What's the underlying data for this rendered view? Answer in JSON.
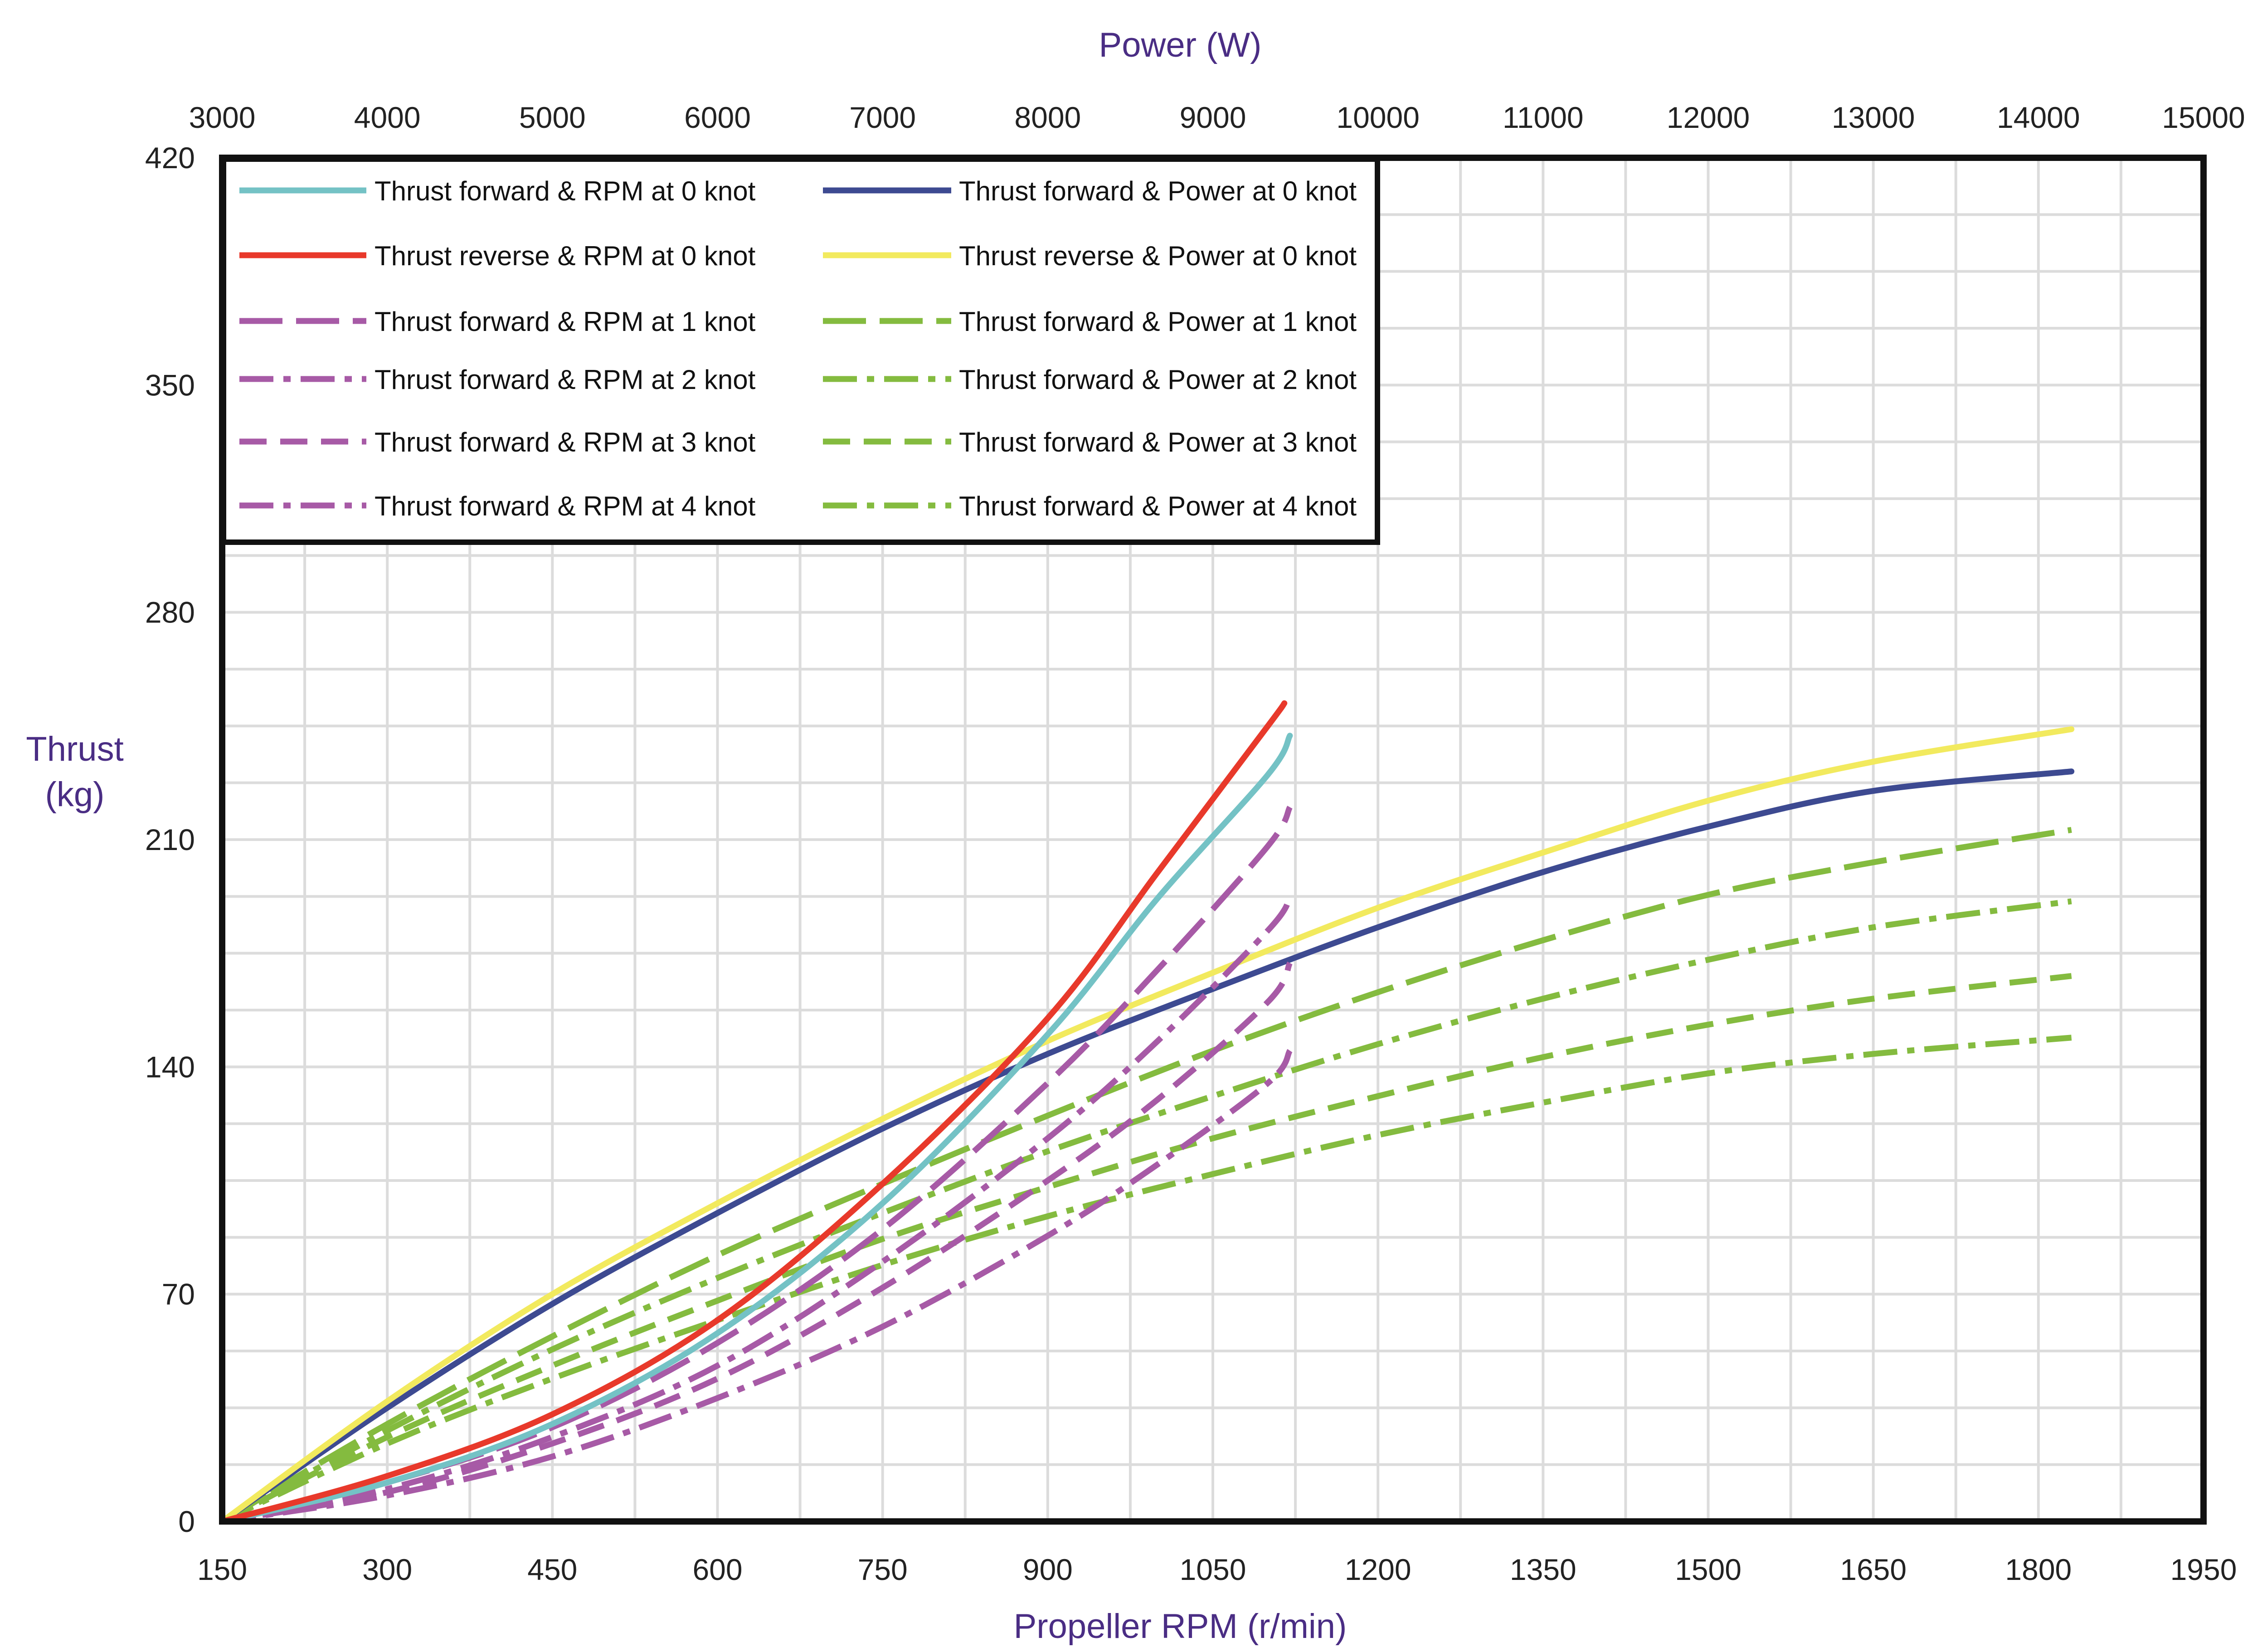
{
  "chart_data": {
    "type": "line",
    "x_bottom": {
      "label": "Propeller RPM (r/min)",
      "min": 150,
      "max": 1950,
      "ticks": [
        150,
        300,
        450,
        600,
        750,
        900,
        1050,
        1200,
        1350,
        1500,
        1650,
        1800,
        1950
      ]
    },
    "x_top": {
      "label": "Power (W)",
      "min": 3000,
      "max": 15000,
      "ticks": [
        3000,
        4000,
        5000,
        6000,
        7000,
        8000,
        9000,
        10000,
        11000,
        12000,
        13000,
        14000,
        15000
      ]
    },
    "y": {
      "label_line1": "Thrust",
      "label_line2": "(kg)",
      "min": 0,
      "max": 420,
      "ticks": [
        0,
        70,
        140,
        210,
        280,
        350,
        420
      ]
    },
    "grid": true,
    "legend_position": "top-left",
    "series": [
      {
        "name": "Thrust forward &  RPM at 0 knot",
        "axis": "rpm",
        "color": "#74c2c5",
        "dash": "solid",
        "x": [
          150,
          300,
          450,
          600,
          750,
          900,
          1000,
          1100,
          1120
        ],
        "y": [
          0,
          12,
          30,
          58,
          98,
          150,
          192,
          230,
          242
        ]
      },
      {
        "name": "Thrust reverse  &  RPM at 0 knot",
        "axis": "rpm",
        "color": "#e8392b",
        "dash": "solid",
        "x": [
          150,
          300,
          450,
          600,
          750,
          900,
          1000,
          1100,
          1115
        ],
        "y": [
          0,
          14,
          33,
          62,
          104,
          155,
          200,
          245,
          252
        ]
      },
      {
        "name": "Thrust forward &  RPM at 1 knot",
        "axis": "rpm",
        "color": "#a75aa6",
        "dash": "long",
        "x": [
          150,
          300,
          450,
          600,
          750,
          900,
          1000,
          1100,
          1120
        ],
        "y": [
          0,
          12,
          29,
          55,
          90,
          135,
          170,
          208,
          220
        ]
      },
      {
        "name": "Thrust forward &  RPM at 2 knot",
        "axis": "rpm",
        "color": "#a75aa6",
        "dash": "dashdot",
        "x": [
          150,
          300,
          450,
          600,
          750,
          900,
          1000,
          1100,
          1120
        ],
        "y": [
          0,
          10,
          26,
          48,
          80,
          118,
          148,
          182,
          192
        ]
      },
      {
        "name": "Thrust forward &  RPM at 3 knot",
        "axis": "rpm",
        "color": "#a75aa6",
        "dash": "medium",
        "x": [
          150,
          300,
          450,
          600,
          750,
          900,
          1000,
          1100,
          1120
        ],
        "y": [
          0,
          9,
          24,
          44,
          72,
          105,
          130,
          160,
          172
        ]
      },
      {
        "name": "Thrust forward &  RPM at 4 knot",
        "axis": "rpm",
        "color": "#a75aa6",
        "dash": "dashdot",
        "x": [
          150,
          300,
          450,
          600,
          750,
          900,
          1000,
          1100,
          1120
        ],
        "y": [
          0,
          8,
          20,
          38,
          60,
          88,
          110,
          135,
          145
        ]
      },
      {
        "name": "Thrust forward & Power at 0 knot",
        "axis": "power",
        "color": "#3d4a91",
        "dash": "solid",
        "x": [
          3000,
          4000,
          5000,
          6000,
          7000,
          8000,
          9000,
          10000,
          11000,
          12000,
          13000,
          14200
        ],
        "y": [
          0,
          35,
          67,
          95,
          121,
          144,
          164,
          183,
          200,
          214,
          225,
          231
        ]
      },
      {
        "name": "Thrust reverse & Power at 0 knot",
        "axis": "power",
        "color": "#f2ea5e",
        "dash": "solid",
        "x": [
          3000,
          4000,
          5000,
          6000,
          7000,
          8000,
          9000,
          10000,
          11000,
          12000,
          13000,
          14200
        ],
        "y": [
          0,
          37,
          70,
          98,
          124,
          148,
          169,
          189,
          206,
          222,
          234,
          244
        ]
      },
      {
        "name": "Thrust forward & Power at 1 knot",
        "axis": "power",
        "color": "#84bb3f",
        "dash": "long",
        "x": [
          3000,
          4000,
          5000,
          6000,
          7000,
          8000,
          9000,
          10000,
          11000,
          12000,
          13000,
          14200
        ],
        "y": [
          0,
          30,
          57,
          82,
          104,
          125,
          145,
          163,
          179,
          193,
          203,
          213
        ]
      },
      {
        "name": "Thrust forward & Power at 2 knot",
        "axis": "power",
        "color": "#84bb3f",
        "dash": "dashdot",
        "x": [
          3000,
          4000,
          5000,
          6000,
          7000,
          8000,
          9000,
          10000,
          11000,
          12000,
          13000,
          14200
        ],
        "y": [
          0,
          28,
          53,
          75,
          95,
          114,
          131,
          147,
          161,
          173,
          183,
          191
        ]
      },
      {
        "name": "Thrust forward & Power at 3 knot",
        "axis": "power",
        "color": "#84bb3f",
        "dash": "medium",
        "x": [
          3000,
          4000,
          5000,
          6000,
          7000,
          8000,
          9000,
          10000,
          11000,
          12000,
          13000,
          14200
        ],
        "y": [
          0,
          26,
          48,
          68,
          87,
          103,
          118,
          131,
          143,
          153,
          161,
          168
        ]
      },
      {
        "name": "Thrust forward & Power at 4 knot",
        "axis": "power",
        "color": "#84bb3f",
        "dash": "dashdot",
        "x": [
          3000,
          4000,
          5000,
          6000,
          7000,
          8000,
          9000,
          10000,
          11000,
          12000,
          13000,
          14200
        ],
        "y": [
          0,
          24,
          44,
          62,
          79,
          94,
          107,
          119,
          129,
          138,
          144,
          149
        ]
      }
    ],
    "legend_rows": [
      [
        0,
        6
      ],
      [
        1,
        7
      ],
      [
        2,
        8
      ],
      [
        3,
        9
      ],
      [
        4,
        10
      ],
      [
        5,
        11
      ]
    ]
  }
}
